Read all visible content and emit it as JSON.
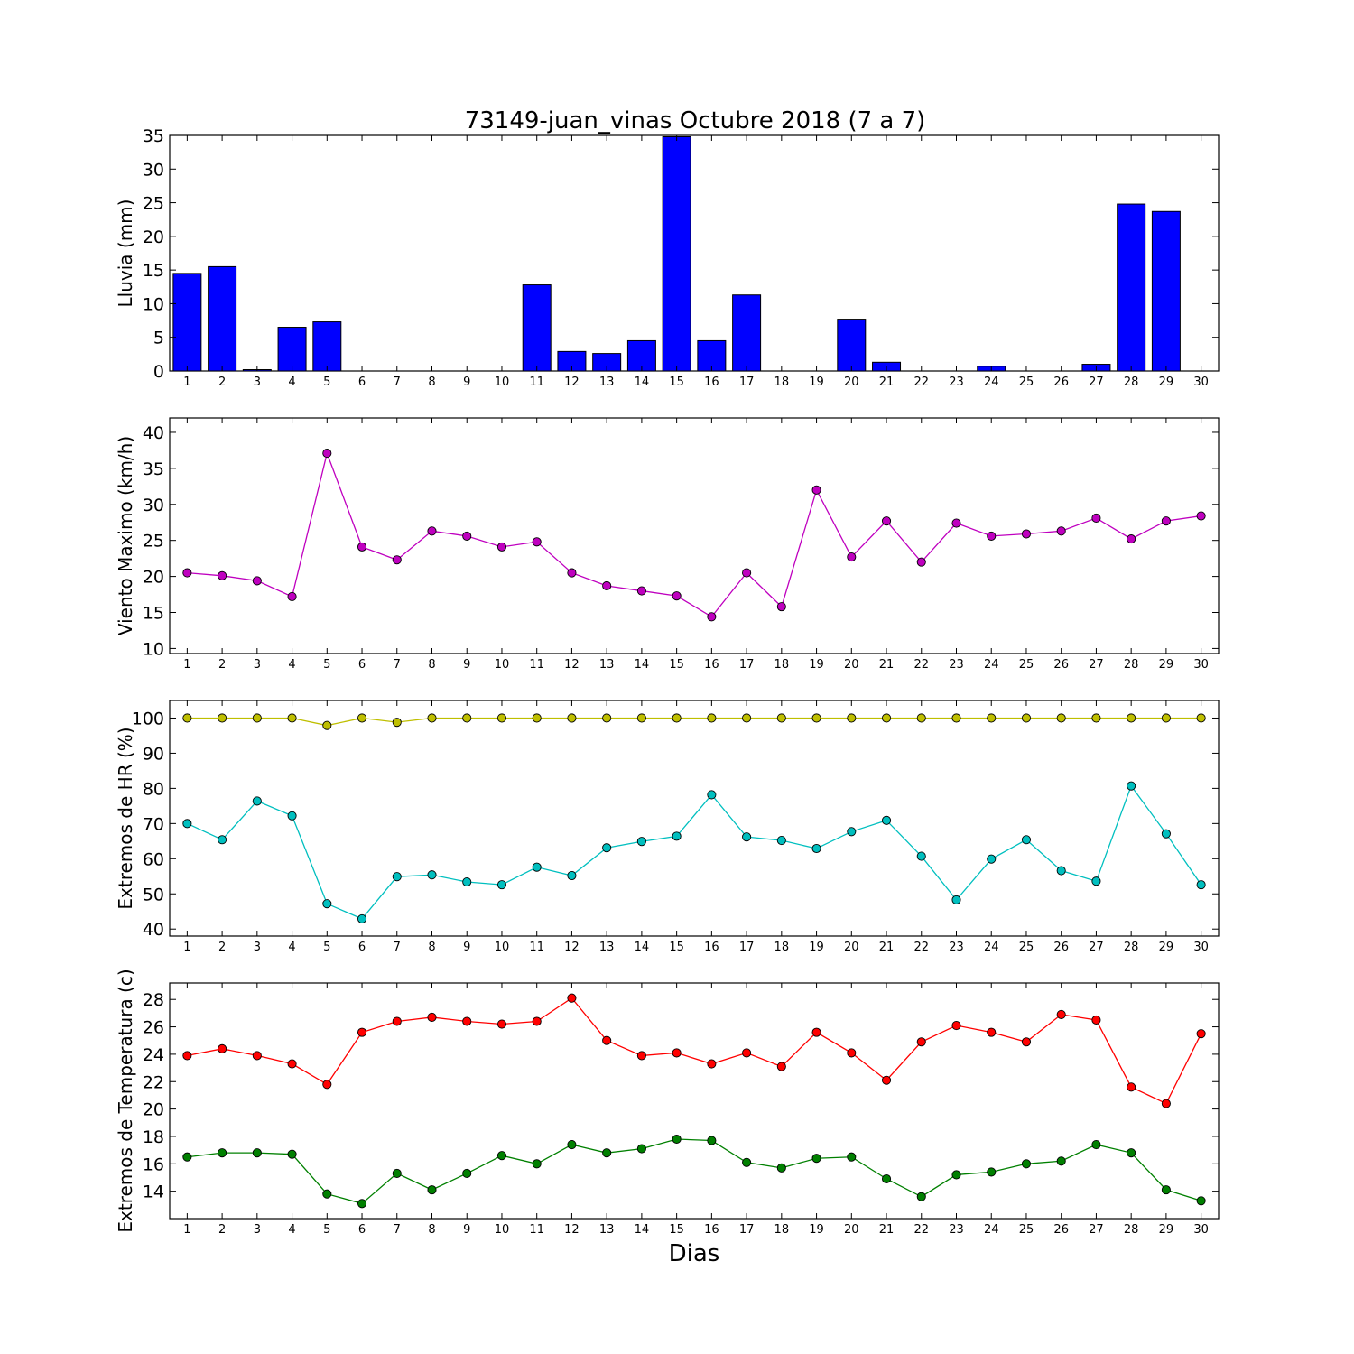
{
  "title": "73149-juan_vinas Octubre 2018  (7 a 7)",
  "xlabel": "Dias",
  "chart_data": [
    {
      "type": "bar",
      "ylabel": "Lluvia (mm)",
      "ylim": [
        0,
        35
      ],
      "yticks": [
        0,
        5,
        10,
        15,
        20,
        25,
        30,
        35
      ],
      "xlim": [
        0.5,
        30.5
      ],
      "x": [
        1,
        2,
        3,
        4,
        5,
        6,
        7,
        8,
        9,
        10,
        11,
        12,
        13,
        14,
        15,
        16,
        17,
        18,
        19,
        20,
        21,
        22,
        23,
        24,
        25,
        26,
        27,
        28,
        29,
        30
      ],
      "color": "#0000ff",
      "values": [
        14.5,
        15.5,
        0.2,
        6.5,
        7.3,
        0,
        0,
        0,
        0,
        0,
        12.8,
        2.9,
        2.6,
        4.5,
        34.8,
        4.5,
        11.3,
        0,
        0,
        7.7,
        1.3,
        0,
        0,
        0.7,
        0,
        0,
        1.0,
        24.8,
        23.7,
        0
      ]
    },
    {
      "type": "line",
      "ylabel": "Viento Maximo (km/h)",
      "ylim": [
        9.3,
        42
      ],
      "yticks": [
        10,
        15,
        20,
        25,
        30,
        35,
        40
      ],
      "xlim": [
        0.5,
        30.5
      ],
      "x": [
        1,
        2,
        3,
        4,
        5,
        6,
        7,
        8,
        9,
        10,
        11,
        12,
        13,
        14,
        15,
        16,
        17,
        18,
        19,
        20,
        21,
        22,
        23,
        24,
        25,
        26,
        27,
        28,
        29,
        30
      ],
      "series": [
        {
          "color": "#bf00bf",
          "values": [
            20.5,
            20.1,
            19.4,
            17.2,
            37.1,
            24.1,
            22.3,
            26.3,
            25.6,
            24.1,
            24.8,
            20.5,
            18.7,
            18.0,
            17.3,
            14.4,
            20.5,
            15.8,
            32.0,
            22.7,
            27.7,
            22.0,
            27.4,
            25.6,
            25.9,
            26.3,
            28.1,
            25.2,
            27.7,
            28.4
          ]
        }
      ]
    },
    {
      "type": "line",
      "ylabel": "Extremos de HR (%)",
      "ylim": [
        38,
        105
      ],
      "yticks": [
        40,
        50,
        60,
        70,
        80,
        90,
        100
      ],
      "xlim": [
        0.5,
        30.5
      ],
      "x": [
        1,
        2,
        3,
        4,
        5,
        6,
        7,
        8,
        9,
        10,
        11,
        12,
        13,
        14,
        15,
        16,
        17,
        18,
        19,
        20,
        21,
        22,
        23,
        24,
        25,
        26,
        27,
        28,
        29,
        30
      ],
      "series": [
        {
          "color": "#bfbf00",
          "values": [
            100,
            100,
            100,
            100,
            97.9,
            100,
            98.8,
            100,
            100,
            100,
            100,
            100,
            100,
            100,
            100,
            100,
            100,
            100,
            100,
            100,
            100,
            100,
            100,
            100,
            100,
            100,
            100,
            100,
            100,
            100
          ]
        },
        {
          "color": "#00bfbf",
          "values": [
            70.0,
            65.4,
            76.4,
            72.2,
            47.2,
            42.9,
            54.9,
            55.4,
            53.4,
            52.6,
            57.6,
            55.2,
            63.1,
            64.9,
            66.4,
            78.2,
            66.2,
            65.2,
            62.9,
            67.7,
            70.9,
            60.7,
            48.3,
            59.9,
            65.4,
            56.6,
            53.6,
            80.7,
            67.1,
            52.6
          ]
        }
      ]
    },
    {
      "type": "line",
      "ylabel": "Extremos de Temperatura (c)",
      "ylim": [
        12,
        29.2
      ],
      "yticks": [
        14,
        16,
        18,
        20,
        22,
        24,
        26,
        28
      ],
      "xlim": [
        0.5,
        30.5
      ],
      "x": [
        1,
        2,
        3,
        4,
        5,
        6,
        7,
        8,
        9,
        10,
        11,
        12,
        13,
        14,
        15,
        16,
        17,
        18,
        19,
        20,
        21,
        22,
        23,
        24,
        25,
        26,
        27,
        28,
        29,
        30
      ],
      "series": [
        {
          "color": "#ff0000",
          "values": [
            23.9,
            24.4,
            23.9,
            23.3,
            21.8,
            25.6,
            26.4,
            26.7,
            26.4,
            26.2,
            26.4,
            28.1,
            25.0,
            23.9,
            24.1,
            23.3,
            24.1,
            23.1,
            25.6,
            24.1,
            22.1,
            24.9,
            26.1,
            25.6,
            24.9,
            26.9,
            26.5,
            21.6,
            20.4,
            25.5
          ]
        },
        {
          "color": "#008000",
          "values": [
            16.5,
            16.8,
            16.8,
            16.7,
            13.8,
            13.1,
            15.3,
            14.1,
            15.3,
            16.6,
            16.0,
            17.4,
            16.8,
            17.1,
            17.8,
            17.7,
            16.1,
            15.7,
            16.4,
            16.5,
            14.9,
            13.6,
            15.2,
            15.4,
            16.0,
            16.2,
            17.4,
            16.8,
            14.1,
            13.3
          ]
        }
      ]
    }
  ]
}
